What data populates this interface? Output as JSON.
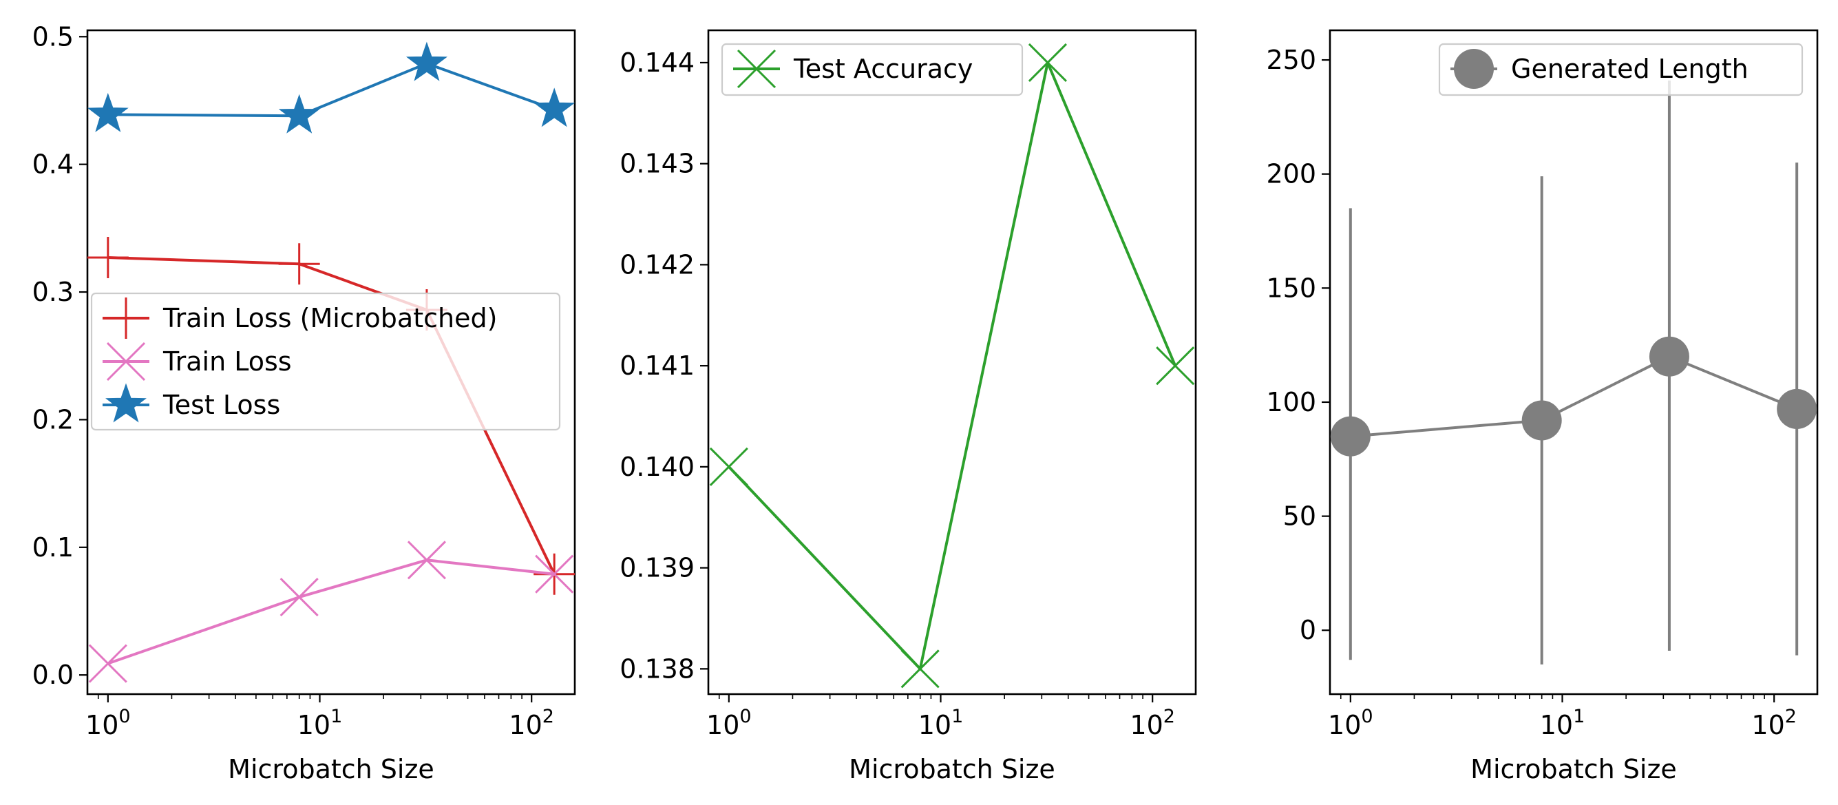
{
  "chart_data": [
    {
      "type": "line",
      "xlabel": "Microbatch Size",
      "ylabel": "",
      "xscale": "log",
      "xlim": [
        0.8,
        160
      ],
      "ylim": [
        -0.015,
        0.505
      ],
      "x_ticks": [
        {
          "base": "10",
          "exp": "0"
        },
        {
          "base": "10",
          "exp": "1"
        },
        {
          "base": "10",
          "exp": "2"
        }
      ],
      "y_ticks": [
        "0.0",
        "0.1",
        "0.2",
        "0.3",
        "0.4",
        "0.5"
      ],
      "legend_position": "center-left",
      "series": [
        {
          "name": "Train Loss (Microbatched)",
          "color": "#d62728",
          "marker": "plus",
          "x": [
            1,
            8,
            32,
            128
          ],
          "y": [
            0.327,
            0.322,
            0.286,
            0.079
          ]
        },
        {
          "name": "Train Loss",
          "color": "#e377c2",
          "marker": "x",
          "x": [
            1,
            8,
            32,
            128
          ],
          "y": [
            0.009,
            0.061,
            0.09,
            0.079
          ]
        },
        {
          "name": "Test Loss",
          "color": "#1f77b4",
          "marker": "star",
          "x": [
            1,
            8,
            32,
            128
          ],
          "y": [
            0.439,
            0.438,
            0.479,
            0.443
          ]
        }
      ]
    },
    {
      "type": "line",
      "xlabel": "Microbatch Size",
      "ylabel": "",
      "xscale": "log",
      "xlim": [
        0.8,
        160
      ],
      "ylim": [
        0.13775,
        0.14432
      ],
      "x_ticks": [
        {
          "base": "10",
          "exp": "0"
        },
        {
          "base": "10",
          "exp": "1"
        },
        {
          "base": "10",
          "exp": "2"
        }
      ],
      "y_ticks": [
        "0.138",
        "0.139",
        "0.140",
        "0.141",
        "0.142",
        "0.143",
        "0.144"
      ],
      "legend_position": "top-left",
      "series": [
        {
          "name": "Test Accuracy",
          "color": "#2ca02c",
          "marker": "x",
          "x": [
            1,
            8,
            32,
            128
          ],
          "y": [
            0.14,
            0.138,
            0.144,
            0.141
          ]
        }
      ]
    },
    {
      "type": "line",
      "xlabel": "Microbatch Size",
      "ylabel": "",
      "xscale": "log",
      "xlim": [
        0.8,
        160
      ],
      "ylim": [
        -28,
        263
      ],
      "x_ticks": [
        {
          "base": "10",
          "exp": "0"
        },
        {
          "base": "10",
          "exp": "1"
        },
        {
          "base": "10",
          "exp": "2"
        }
      ],
      "y_ticks": [
        "0",
        "50",
        "100",
        "150",
        "200",
        "250"
      ],
      "legend_position": "top-right",
      "series": [
        {
          "name": "Generated Length",
          "color": "#7f7f7f",
          "marker": "circle",
          "x": [
            1,
            8,
            32,
            128
          ],
          "y": [
            85,
            92,
            120,
            97
          ],
          "error_low": [
            -13,
            -15,
            -9,
            -11
          ],
          "error_high": [
            185,
            199,
            241,
            205
          ]
        }
      ]
    }
  ]
}
